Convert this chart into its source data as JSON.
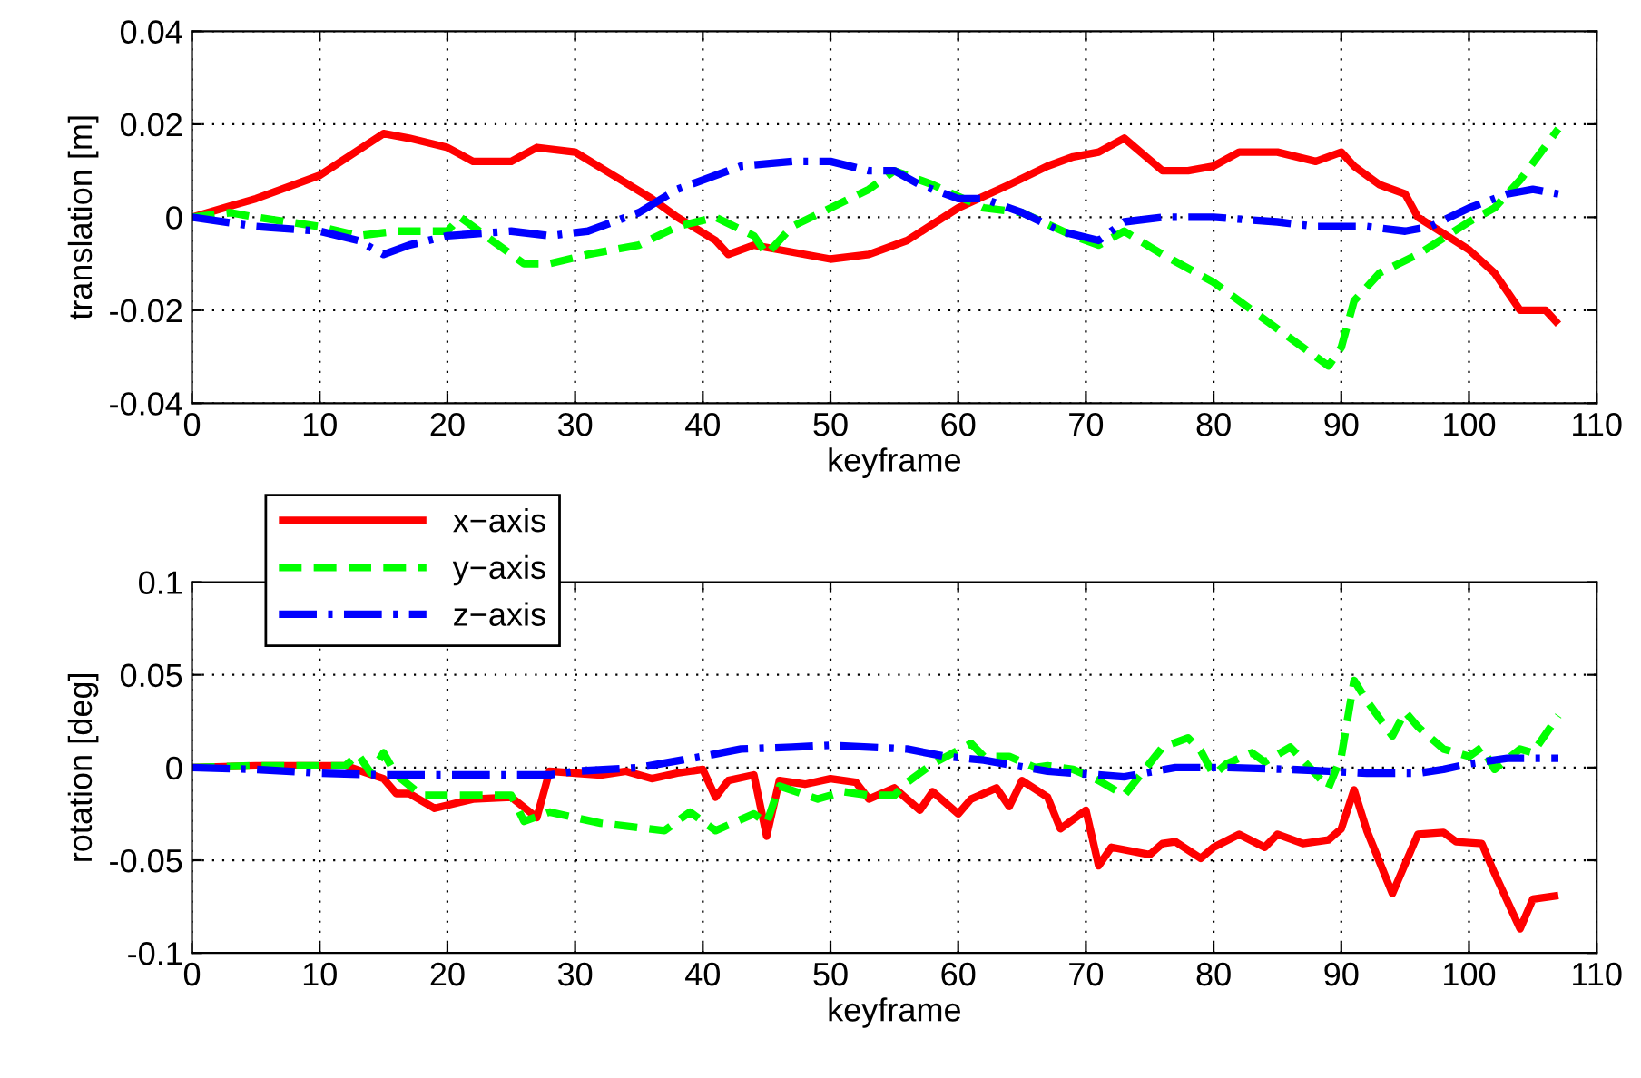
{
  "chart_data": [
    {
      "type": "line",
      "xlabel": "keyframe",
      "ylabel": "translation [m]",
      "xlim": [
        0,
        110
      ],
      "xticks": [
        0,
        10,
        20,
        30,
        40,
        50,
        60,
        70,
        80,
        90,
        100,
        110
      ],
      "ylim": [
        -0.04,
        0.04
      ],
      "yticks": [
        -0.04,
        -0.02,
        0,
        0.02,
        0.04
      ],
      "grid": true,
      "legend": "bottom left",
      "series": [
        {
          "name": "x−axis",
          "color": "#ff0000",
          "line_style": "solid",
          "x": [
            0,
            5,
            10,
            15,
            17,
            20,
            22,
            25,
            27,
            30,
            33,
            36,
            38,
            41,
            42,
            44,
            46,
            50,
            53,
            56,
            60,
            64,
            67,
            69,
            71,
            73,
            76,
            78,
            80,
            82,
            85,
            88,
            90,
            91,
            93,
            95,
            96,
            100,
            102,
            104,
            106,
            107
          ],
          "values": [
            0,
            0.004,
            0.009,
            0.018,
            0.017,
            0.015,
            0.012,
            0.012,
            0.015,
            0.014,
            0.009,
            0.004,
            0,
            -0.005,
            -0.008,
            -0.006,
            -0.007,
            -0.009,
            -0.008,
            -0.005,
            0.002,
            0.007,
            0.011,
            0.013,
            0.014,
            0.017,
            0.01,
            0.01,
            0.011,
            0.014,
            0.014,
            0.012,
            0.014,
            0.011,
            0.007,
            0.005,
            0,
            -0.007,
            -0.012,
            -0.02,
            -0.02,
            -0.023
          ]
        },
        {
          "name": "y−axis",
          "color": "#00ff00",
          "line_style": "dashed",
          "x": [
            0,
            3,
            5,
            10,
            13,
            16,
            20,
            21,
            23,
            26,
            28,
            31,
            35,
            38,
            41,
            44,
            45,
            47,
            50,
            53,
            55,
            58,
            62,
            65,
            69,
            71,
            73,
            76,
            80,
            84,
            88,
            89,
            90,
            91,
            93,
            96,
            100,
            102,
            104,
            107
          ],
          "values": [
            0,
            0.001,
            0,
            -0.002,
            -0.004,
            -0.003,
            -0.003,
            0,
            -0.004,
            -0.01,
            -0.01,
            -0.008,
            -0.006,
            -0.002,
            0,
            -0.004,
            -0.008,
            -0.002,
            0.002,
            0.006,
            0.01,
            0.007,
            0.002,
            0.001,
            -0.004,
            -0.006,
            -0.003,
            -0.008,
            -0.014,
            -0.022,
            -0.03,
            -0.032,
            -0.028,
            -0.018,
            -0.012,
            -0.008,
            -0.001,
            0.002,
            0.008,
            0.019
          ]
        },
        {
          "name": "z−axis",
          "color": "#0000ff",
          "line_style": "dashdot",
          "x": [
            0,
            5,
            10,
            13,
            15,
            17,
            20,
            25,
            28,
            31,
            35,
            38,
            41,
            43,
            47,
            50,
            53,
            55,
            57,
            60,
            62,
            65,
            68,
            71,
            73,
            76,
            80,
            85,
            88,
            92,
            95,
            97,
            100,
            103,
            105,
            107
          ],
          "values": [
            0,
            -0.002,
            -0.003,
            -0.005,
            -0.008,
            -0.006,
            -0.004,
            -0.003,
            -0.004,
            -0.003,
            0.001,
            0.006,
            0.009,
            0.011,
            0.012,
            0.012,
            0.01,
            0.01,
            0.007,
            0.004,
            0.004,
            0.001,
            -0.003,
            -0.005,
            -0.001,
            0,
            0,
            -0.001,
            -0.002,
            -0.002,
            -0.003,
            -0.002,
            0.002,
            0.005,
            0.006,
            0.005
          ]
        }
      ]
    },
    {
      "type": "line",
      "xlabel": "keyframe",
      "ylabel": "rotation [deg]",
      "xlim": [
        0,
        110
      ],
      "xticks": [
        0,
        10,
        20,
        30,
        40,
        50,
        60,
        70,
        80,
        90,
        100,
        110
      ],
      "ylim": [
        -0.1,
        0.1
      ],
      "yticks": [
        -0.1,
        -0.05,
        0,
        0.05,
        0.1
      ],
      "grid": true,
      "series": [
        {
          "color": "#ff0000",
          "line_style": "solid",
          "x": [
            0,
            5,
            10,
            12,
            15,
            16,
            17,
            19,
            22,
            25,
            27,
            28,
            30,
            32,
            34,
            36,
            38,
            40,
            41,
            42,
            44,
            45,
            46,
            48,
            50,
            52,
            53,
            55,
            57,
            58,
            60,
            61,
            63,
            64,
            65,
            67,
            68,
            70,
            71,
            72,
            75,
            76,
            77,
            79,
            80,
            82,
            84,
            85,
            87,
            89,
            90,
            91,
            92,
            94,
            96,
            98,
            99,
            101,
            102,
            104,
            105,
            107
          ],
          "values": [
            0,
            0.001,
            0.001,
            0.001,
            -0.006,
            -0.014,
            -0.014,
            -0.022,
            -0.017,
            -0.016,
            -0.027,
            -0.002,
            -0.003,
            -0.004,
            -0.002,
            -0.006,
            -0.003,
            -0.001,
            -0.016,
            -0.007,
            -0.004,
            -0.037,
            -0.007,
            -0.009,
            -0.006,
            -0.008,
            -0.017,
            -0.011,
            -0.023,
            -0.013,
            -0.025,
            -0.017,
            -0.011,
            -0.021,
            -0.007,
            -0.016,
            -0.033,
            -0.023,
            -0.053,
            -0.043,
            -0.047,
            -0.041,
            -0.04,
            -0.049,
            -0.043,
            -0.036,
            -0.043,
            -0.036,
            -0.041,
            -0.039,
            -0.033,
            -0.012,
            -0.034,
            -0.068,
            -0.036,
            -0.035,
            -0.04,
            -0.041,
            -0.057,
            -0.087,
            -0.071,
            -0.069
          ]
        },
        {
          "color": "#00ff00",
          "line_style": "dashed",
          "x": [
            0,
            5,
            10,
            12,
            13,
            14,
            15,
            16,
            18,
            23,
            25,
            26,
            28,
            32,
            37,
            39,
            41,
            44,
            45,
            46,
            49,
            51,
            53,
            55,
            56,
            58,
            61,
            62,
            64,
            66,
            67,
            69,
            71,
            73,
            76,
            78,
            79,
            80,
            81,
            83,
            84,
            86,
            87,
            89,
            90,
            91,
            92,
            94,
            95,
            96,
            98,
            100,
            101,
            102,
            104,
            105,
            107
          ],
          "values": [
            0,
            0.001,
            0.001,
            0.001,
            0.007,
            -0.003,
            0.008,
            -0.004,
            -0.015,
            -0.015,
            -0.015,
            -0.029,
            -0.024,
            -0.03,
            -0.034,
            -0.024,
            -0.034,
            -0.025,
            -0.03,
            -0.01,
            -0.017,
            -0.013,
            -0.015,
            -0.015,
            -0.008,
            0.002,
            0.013,
            0.006,
            0.006,
            0,
            0.001,
            -0.001,
            -0.007,
            -0.015,
            0.011,
            0.016,
            0.009,
            -0.004,
            0.002,
            0.008,
            0.003,
            0.011,
            0.004,
            -0.011,
            0.006,
            0.047,
            0.036,
            0.017,
            0.03,
            0.022,
            0.01,
            0.006,
            0.011,
            -0.001,
            0.01,
            0.008,
            0.028
          ]
        },
        {
          "color": "#0000ff",
          "line_style": "dashdot",
          "x": [
            0,
            5,
            10,
            15,
            20,
            25,
            28,
            30,
            35,
            40,
            43,
            47,
            50,
            53,
            56,
            59,
            62,
            67,
            73,
            77,
            81,
            86,
            89,
            92,
            96,
            98,
            100,
            103,
            107
          ],
          "values": [
            0,
            -0.001,
            -0.003,
            -0.004,
            -0.004,
            -0.004,
            -0.004,
            -0.002,
            0,
            0.006,
            0.01,
            0.011,
            0.012,
            0.011,
            0.01,
            0.006,
            0.004,
            -0.002,
            -0.005,
            0,
            0,
            -0.001,
            -0.002,
            -0.003,
            -0.003,
            -0.001,
            0.002,
            0.005,
            0.005
          ]
        }
      ]
    }
  ]
}
